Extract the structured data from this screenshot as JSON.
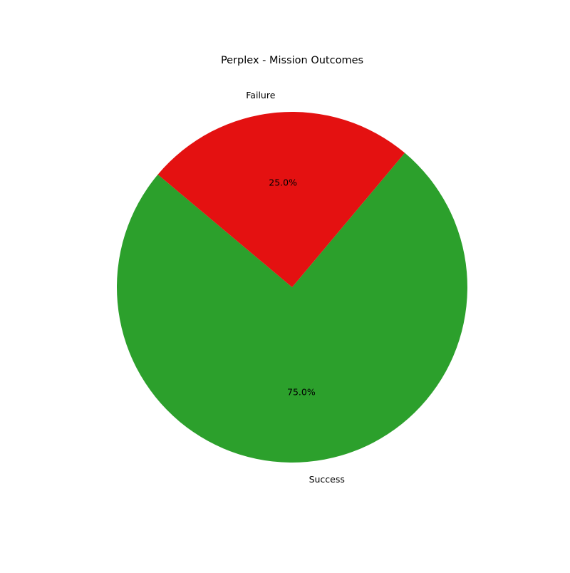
{
  "chart_data": {
    "type": "pie",
    "title": "Perplex - Mission Outcomes",
    "slices": [
      {
        "label": "Success",
        "value": 75.0,
        "pct_label": "75.0%",
        "color": "#2ca02c"
      },
      {
        "label": "Failure",
        "value": 25.0,
        "pct_label": "25.0%",
        "color": "#e41111"
      }
    ],
    "start_angle_deg": 140,
    "direction": "counterclockwise"
  }
}
